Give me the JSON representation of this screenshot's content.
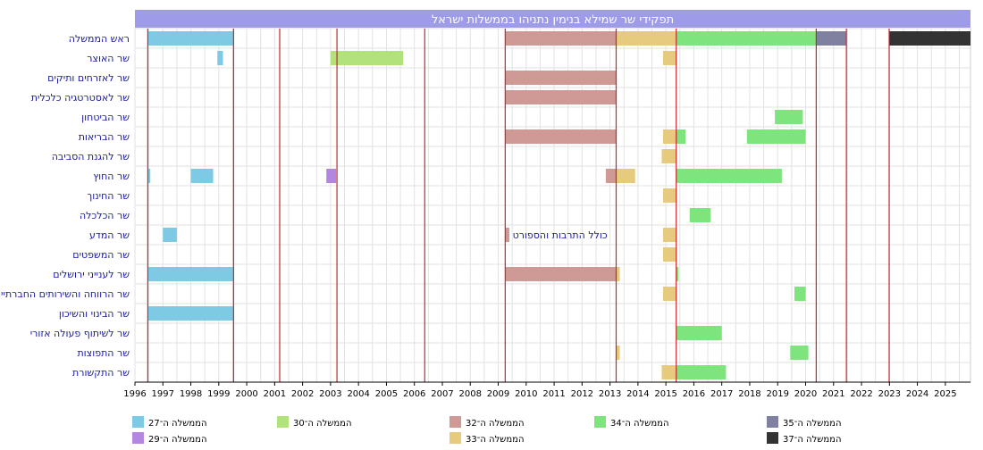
{
  "chart_data": {
    "type": "timeline",
    "title": "תפקידי שר שמילא בנימין נתניהו בממשלות ישראל",
    "x_range": [
      1996,
      2025.9
    ],
    "x_ticks": [
      1996,
      1997,
      1998,
      1999,
      2000,
      2001,
      2002,
      2003,
      2004,
      2005,
      2006,
      2007,
      2008,
      2009,
      2010,
      2011,
      2012,
      2013,
      2014,
      2015,
      2016,
      2017,
      2018,
      2019,
      2020,
      2021,
      2022,
      2023,
      2024,
      2025
    ],
    "grid": true,
    "government_boundaries": [
      1996.46,
      1999.53,
      2001.18,
      2003.23,
      2006.37,
      2009.25,
      2013.22,
      2015.37,
      2020.38,
      2021.46,
      2022.99
    ],
    "roles": [
      "ראש הממשלה",
      "שר האוצר",
      "שר לאזרחים ותיקים",
      "שר לאסטרטגיה כלכלית",
      "שר הביטחון",
      "שר הבריאות",
      "שר להגנת הסביבה",
      "שר החוץ",
      "שר החינוך",
      "שר הכלכלה",
      "שר המדע",
      "שר המשפטים",
      "שר לענייני ירושלים",
      "שר הרווחה והשירותים החברתיים",
      "שר הבינוי והשיכון",
      "שר לשיתוף פעולה אזורי",
      "שר התפוצות",
      "שר התקשורת"
    ],
    "series": [
      {
        "name": "הממשלה ה־27",
        "color": "#7ecae4"
      },
      {
        "name": "הממשלה ה־29",
        "color": "#b387e0"
      },
      {
        "name": "הממשלה ה־30",
        "color": "#b2e27c"
      },
      {
        "name": "הממשלה ה־32",
        "color": "#cf9a96"
      },
      {
        "name": "הממשלה ה־33",
        "color": "#e6ca7e"
      },
      {
        "name": "הממשלה ה־34",
        "color": "#7ee47e"
      },
      {
        "name": "הממשלה ה־35",
        "color": "#8080a0"
      },
      {
        "name": "הממשלה ה־37",
        "color": "#333333"
      }
    ],
    "bars": [
      {
        "role": 0,
        "start": 1996.46,
        "end": 1999.53,
        "series": 0
      },
      {
        "role": 0,
        "start": 2009.25,
        "end": 2013.22,
        "series": 3
      },
      {
        "role": 0,
        "start": 2013.22,
        "end": 2015.37,
        "series": 4
      },
      {
        "role": 0,
        "start": 2015.37,
        "end": 2020.38,
        "series": 5
      },
      {
        "role": 0,
        "start": 2020.38,
        "end": 2021.46,
        "series": 6
      },
      {
        "role": 0,
        "start": 2022.99,
        "end": 2025.9,
        "series": 7
      },
      {
        "role": 1,
        "start": 1998.95,
        "end": 1999.15,
        "series": 0
      },
      {
        "role": 1,
        "start": 2003.0,
        "end": 2005.6,
        "series": 2
      },
      {
        "role": 1,
        "start": 2014.9,
        "end": 2015.37,
        "series": 4
      },
      {
        "role": 2,
        "start": 2009.25,
        "end": 2013.22,
        "series": 3
      },
      {
        "role": 3,
        "start": 2009.25,
        "end": 2013.22,
        "series": 3
      },
      {
        "role": 4,
        "start": 2018.9,
        "end": 2019.9,
        "series": 5
      },
      {
        "role": 5,
        "start": 2009.25,
        "end": 2013.22,
        "series": 3
      },
      {
        "role": 5,
        "start": 2014.9,
        "end": 2015.37,
        "series": 4
      },
      {
        "role": 5,
        "start": 2015.37,
        "end": 2015.7,
        "series": 5
      },
      {
        "role": 5,
        "start": 2017.9,
        "end": 2020.0,
        "series": 5
      },
      {
        "role": 6,
        "start": 2014.85,
        "end": 2015.37,
        "series": 4
      },
      {
        "role": 7,
        "start": 1996.46,
        "end": 1996.55,
        "series": 0
      },
      {
        "role": 7,
        "start": 1998.0,
        "end": 1998.8,
        "series": 0
      },
      {
        "role": 7,
        "start": 2002.85,
        "end": 2003.2,
        "series": 1
      },
      {
        "role": 7,
        "start": 2012.85,
        "end": 2013.22,
        "series": 3
      },
      {
        "role": 7,
        "start": 2013.22,
        "end": 2013.9,
        "series": 4
      },
      {
        "role": 7,
        "start": 2015.37,
        "end": 2019.15,
        "series": 5
      },
      {
        "role": 8,
        "start": 2014.9,
        "end": 2015.37,
        "series": 4
      },
      {
        "role": 9,
        "start": 2015.85,
        "end": 2016.6,
        "series": 5
      },
      {
        "role": 10,
        "start": 1997.0,
        "end": 1997.5,
        "series": 0
      },
      {
        "role": 10,
        "start": 2009.25,
        "end": 2009.4,
        "series": 3
      },
      {
        "role": 10,
        "start": 2014.9,
        "end": 2015.37,
        "series": 4
      },
      {
        "role": 11,
        "start": 2014.9,
        "end": 2015.37,
        "series": 4
      },
      {
        "role": 12,
        "start": 1996.46,
        "end": 1999.53,
        "series": 0
      },
      {
        "role": 12,
        "start": 2009.25,
        "end": 2013.22,
        "series": 3
      },
      {
        "role": 12,
        "start": 2013.22,
        "end": 2013.35,
        "series": 4
      },
      {
        "role": 12,
        "start": 2015.37,
        "end": 2015.45,
        "series": 5
      },
      {
        "role": 13,
        "start": 2014.9,
        "end": 2015.37,
        "series": 4
      },
      {
        "role": 13,
        "start": 2019.6,
        "end": 2020.0,
        "series": 5
      },
      {
        "role": 14,
        "start": 1996.46,
        "end": 1999.53,
        "series": 0
      },
      {
        "role": 15,
        "start": 2015.37,
        "end": 2017.0,
        "series": 5
      },
      {
        "role": 16,
        "start": 2013.22,
        "end": 2013.35,
        "series": 4
      },
      {
        "role": 16,
        "start": 2019.45,
        "end": 2020.1,
        "series": 5
      },
      {
        "role": 17,
        "start": 2014.85,
        "end": 2015.37,
        "series": 4
      },
      {
        "role": 17,
        "start": 2015.37,
        "end": 2017.15,
        "series": 5
      }
    ],
    "annotations": [
      {
        "role": 10,
        "x": 2009.45,
        "text": "כולל התרבות והספורט"
      }
    ]
  }
}
